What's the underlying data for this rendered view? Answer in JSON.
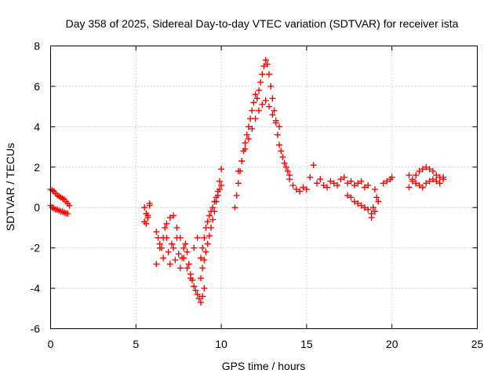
{
  "chart_data": {
    "type": "scatter",
    "title": "Day 358 of 2025, Sidereal Day-to-day VTEC variation (SDTVAR) for receiver ista",
    "xlabel": "GPS time / hours",
    "ylabel": "SDTVAR / TECUs",
    "xlim": [
      0,
      25
    ],
    "ylim": [
      -6,
      8
    ],
    "xticks": [
      "0",
      "5",
      "10",
      "15",
      "20",
      "25"
    ],
    "yticks": [
      "-6",
      "-4",
      "-2",
      "0",
      "2",
      "4",
      "6",
      "8"
    ],
    "xtick_values": [
      0,
      5,
      10,
      15,
      20,
      25
    ],
    "ytick_values": [
      -6,
      -4,
      -2,
      0,
      2,
      4,
      6,
      8
    ],
    "grid": true,
    "marker": "plus",
    "color": "#ff0000",
    "series": [
      {
        "name": "SDTVAR",
        "x": [
          0.0,
          0.1,
          0.2,
          0.3,
          0.4,
          0.5,
          0.6,
          0.7,
          0.8,
          0.9,
          1.0,
          1.1,
          0.0,
          0.1,
          0.2,
          0.3,
          0.4,
          0.5,
          0.6,
          0.7,
          0.8,
          0.9,
          1.0,
          5.5,
          5.6,
          5.7,
          5.8,
          5.5,
          5.6,
          5.7,
          5.8,
          6.2,
          6.3,
          6.4,
          6.5,
          6.6,
          6.7,
          6.8,
          6.9,
          7.0,
          7.1,
          7.2,
          7.3,
          7.4,
          7.5,
          7.6,
          7.7,
          7.8,
          7.9,
          8.0,
          8.1,
          8.2,
          8.3,
          8.4,
          8.5,
          8.6,
          8.7,
          8.8,
          8.9,
          9.0,
          6.2,
          6.4,
          6.6,
          6.8,
          7.0,
          7.2,
          7.4,
          7.6,
          7.8,
          8.0,
          8.2,
          8.4,
          8.6,
          8.8,
          8.9,
          9.0,
          9.1,
          9.2,
          9.3,
          9.4,
          9.5,
          9.6,
          9.7,
          9.8,
          9.9,
          10.0,
          8.8,
          8.9,
          9.0,
          9.1,
          9.2,
          9.3,
          9.4,
          9.5,
          9.6,
          9.7,
          9.8,
          9.9,
          10.0,
          10.8,
          10.9,
          11.0,
          11.1,
          11.2,
          11.3,
          11.4,
          11.5,
          11.6,
          11.7,
          11.8,
          11.9,
          12.0,
          12.1,
          12.2,
          12.3,
          12.4,
          12.5,
          12.6,
          12.7,
          12.8,
          12.9,
          13.0,
          13.1,
          13.2,
          13.3,
          13.4,
          13.5,
          13.6,
          13.7,
          13.8,
          13.9,
          14.0,
          11.0,
          11.2,
          11.4,
          11.6,
          11.8,
          12.0,
          12.2,
          12.4,
          12.6,
          12.8,
          13.0,
          13.2,
          13.4,
          14.0,
          14.2,
          14.4,
          14.6,
          14.8,
          15.0,
          15.2,
          15.4,
          15.6,
          15.8,
          16.0,
          16.2,
          16.4,
          16.6,
          16.8,
          17.0,
          17.2,
          17.4,
          17.6,
          17.8,
          18.0,
          18.2,
          18.4,
          18.6,
          17.4,
          17.6,
          17.8,
          18.0,
          18.2,
          18.4,
          18.6,
          18.8,
          19.0,
          18.8,
          18.9,
          19.0,
          19.1,
          19.2,
          19.5,
          19.7,
          19.9,
          20.0,
          21.0,
          21.2,
          21.4,
          21.6,
          21.8,
          22.0,
          22.2,
          22.4,
          22.6,
          22.8,
          23.0,
          21.0,
          21.2,
          21.4,
          21.6,
          21.8,
          22.0,
          22.2,
          22.4,
          22.6,
          22.8,
          23.0
        ],
        "y": [
          0.9,
          0.85,
          0.8,
          0.7,
          0.6,
          0.55,
          0.5,
          0.45,
          0.4,
          0.3,
          0.2,
          0.1,
          0.1,
          0.0,
          -0.05,
          -0.1,
          -0.1,
          -0.15,
          -0.2,
          -0.2,
          -0.25,
          -0.3,
          -0.3,
          0.0,
          -0.3,
          -0.5,
          0.1,
          -0.7,
          -0.8,
          -0.4,
          0.2,
          -1.2,
          -1.5,
          -1.8,
          -2.0,
          -2.5,
          -1.0,
          -1.5,
          -2.2,
          -2.8,
          -1.8,
          -2.0,
          -2.6,
          -1.5,
          -2.3,
          -3.0,
          -2.5,
          -2.0,
          -1.8,
          -2.2,
          -2.8,
          -3.3,
          -3.6,
          -3.9,
          -4.1,
          -4.3,
          -4.5,
          -4.7,
          -4.4,
          -4.0,
          -2.8,
          -2.0,
          -1.5,
          -0.8,
          -0.5,
          -0.4,
          -1.0,
          -1.5,
          -2.5,
          -3.0,
          -3.5,
          -2.0,
          -1.5,
          -3.5,
          -3.0,
          -2.6,
          -2.2,
          -1.8,
          -1.4,
          -1.0,
          -0.6,
          -0.2,
          0.3,
          0.8,
          1.3,
          1.9,
          -2.5,
          -2.0,
          -1.5,
          -1.0,
          -0.7,
          -0.4,
          -0.2,
          0.0,
          0.3,
          0.5,
          0.6,
          0.9,
          1.1,
          0.0,
          0.6,
          1.2,
          1.8,
          2.3,
          2.8,
          3.2,
          3.6,
          4.0,
          4.4,
          4.8,
          5.2,
          5.6,
          5.4,
          5.8,
          6.2,
          6.6,
          7.0,
          7.3,
          7.1,
          6.6,
          6.0,
          5.4,
          4.8,
          4.2,
          3.6,
          3.1,
          2.8,
          2.5,
          2.2,
          2.0,
          1.8,
          1.6,
          1.8,
          2.3,
          2.9,
          3.4,
          3.9,
          4.4,
          4.8,
          5.1,
          5.3,
          5.0,
          4.6,
          4.3,
          4.0,
          1.4,
          1.1,
          0.9,
          0.8,
          1.0,
          0.9,
          1.5,
          2.1,
          1.2,
          1.4,
          1.1,
          1.0,
          1.3,
          1.2,
          1.1,
          1.4,
          1.5,
          1.2,
          1.3,
          1.1,
          1.2,
          1.3,
          1.0,
          1.1,
          0.6,
          0.5,
          0.3,
          0.2,
          0.1,
          0.0,
          -0.1,
          -0.3,
          -0.2,
          -0.5,
          0.0,
          0.9,
          0.5,
          0.3,
          1.2,
          1.3,
          1.4,
          1.5,
          1.0,
          1.3,
          1.6,
          1.8,
          1.9,
          2.0,
          1.9,
          1.8,
          1.6,
          1.5,
          1.4,
          1.6,
          1.4,
          1.2,
          1.1,
          1.0,
          1.2,
          1.3,
          1.4,
          1.3,
          1.2,
          1.5
        ]
      }
    ]
  }
}
